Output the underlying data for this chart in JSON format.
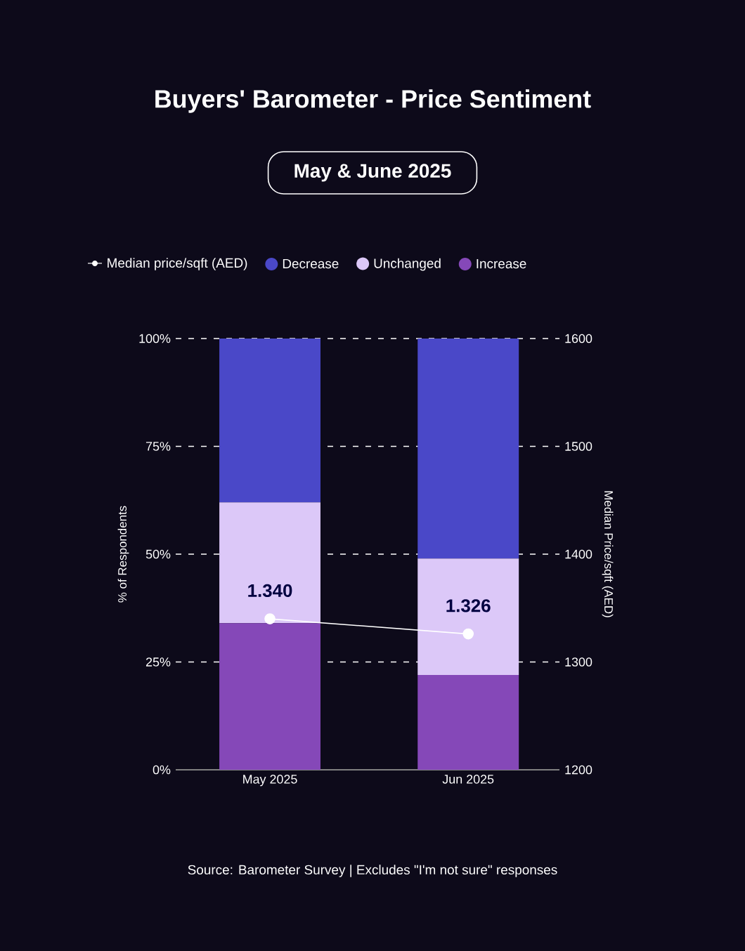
{
  "chart_data": {
    "type": "bar",
    "title": "Buyers' Barometer - Price Sentiment",
    "subtitle": "May & June 2025",
    "ylabel": "% of Respondents",
    "y2label": "Median Price/sqft (AED)",
    "categories": [
      "May 2025",
      "Jun 2025"
    ],
    "stacked": true,
    "series": [
      {
        "name": "Increase",
        "color": "#8548b8",
        "values": [
          34,
          22
        ]
      },
      {
        "name": "Unchanged",
        "color": "#dcc8f8",
        "values": [
          28,
          27
        ]
      },
      {
        "name": "Decrease",
        "color": "#4a48c8",
        "values": [
          38,
          51
        ]
      },
      {
        "name": "Median price/sqft (AED)",
        "type": "line",
        "axis": "y2",
        "color": "#ffffff",
        "marker": "circle",
        "values": [
          1340,
          1326
        ],
        "value_labels": [
          "1.340",
          "1.326"
        ]
      }
    ],
    "ylim": [
      0,
      100
    ],
    "yticks": [
      {
        "value": 0,
        "label": "0%"
      },
      {
        "value": 25,
        "label": "25%"
      },
      {
        "value": 50,
        "label": "50%"
      },
      {
        "value": 75,
        "label": "75%"
      },
      {
        "value": 100,
        "label": "100%"
      }
    ],
    "y2lim": [
      1200,
      1600
    ],
    "y2ticks": [
      1200,
      1300,
      1400,
      1500,
      1600
    ],
    "grid": "y",
    "legend": "top",
    "annotations": [
      "Source: Barometer Survey | Excludes \"I'm not sure\" responses"
    ]
  }
}
